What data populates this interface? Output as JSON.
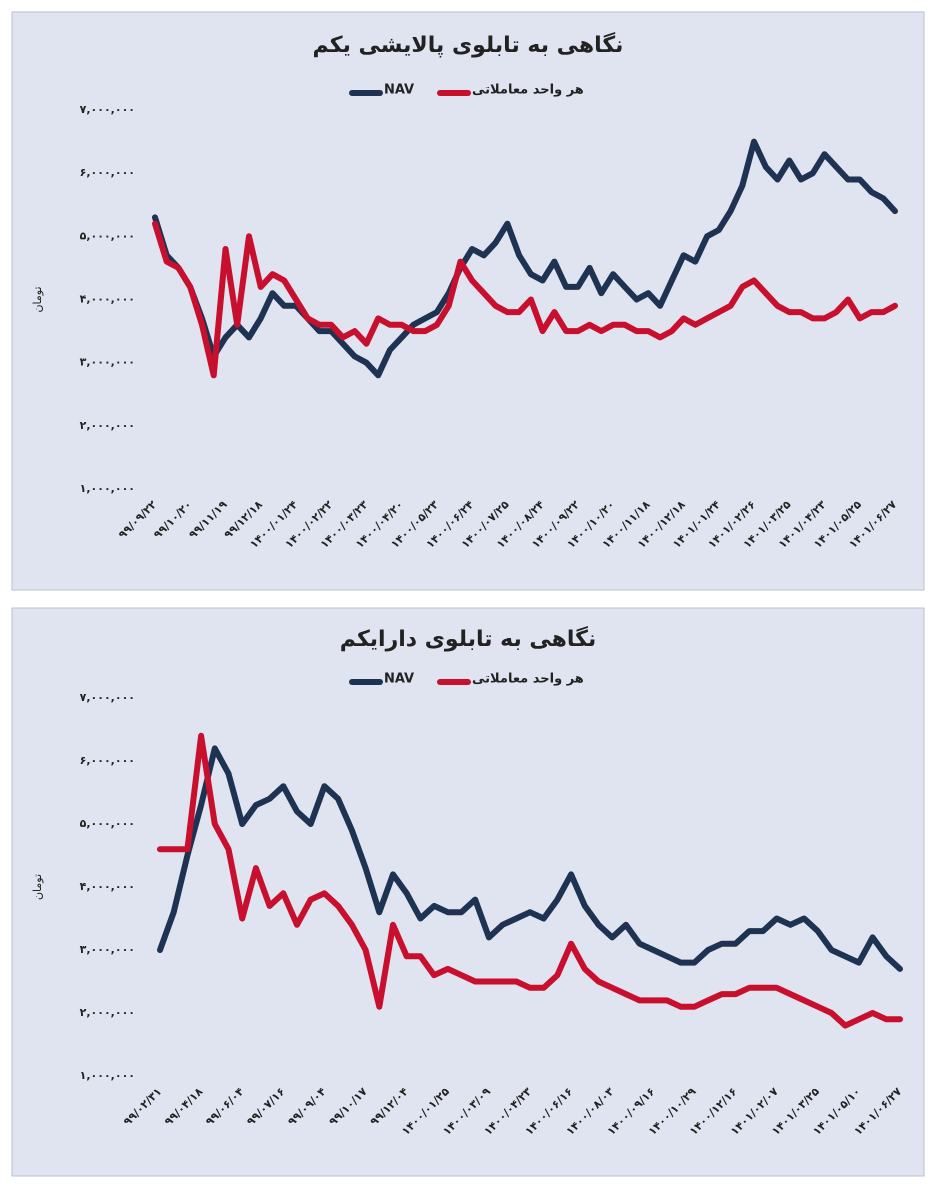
{
  "chart_data": [
    {
      "type": "line",
      "title": "نگاهی به تابلوی پالایشی یکم",
      "y_label": "تومان",
      "categories": [
        "۹۹/۰۹/۲۲",
        null,
        null,
        "۹۹/۱۰/۲۰",
        null,
        null,
        "۹۹/۱۱/۱۹",
        null,
        null,
        "۹۹/۱۲/۱۸",
        null,
        null,
        "۱۴۰۰/۰۱/۲۴",
        null,
        null,
        "۱۴۰۰/۰۲/۲۲",
        null,
        null,
        "۱۴۰۰/۰۳/۲۳",
        null,
        null,
        "۱۴۰۰/۰۴/۲۰",
        null,
        null,
        "۱۴۰۰/۰۵/۲۳",
        null,
        null,
        "۱۴۰۰/۰۶/۲۴",
        null,
        null,
        "۱۴۰۰/۰۷/۲۵",
        null,
        null,
        "۱۴۰۰/۰۸/۲۴",
        null,
        null,
        "۱۴۰۰/۰۹/۲۲",
        null,
        null,
        "۱۴۰۰/۱۰/۲۰",
        null,
        null,
        "۱۴۰۰/۱۱/۱۸",
        null,
        null,
        "۱۴۰۰/۱۲/۱۸",
        null,
        null,
        "۱۴۰۱/۰۱/۲۴",
        null,
        null,
        "۱۴۰۱/۰۲/۲۶",
        null,
        null,
        "۱۴۰۱/۰۳/۲۵",
        null,
        null,
        "۱۴۰۱/۰۴/۲۳",
        null,
        null,
        "۱۴۰۱/۰۵/۲۵",
        null,
        null,
        "۱۴۰۱/۰۶/۲۷"
      ],
      "series": [
        {
          "name": "NAV",
          "color": "#1e3251",
          "values": [
            5300000,
            4700000,
            4500000,
            4200000,
            3700000,
            3100000,
            3400000,
            3600000,
            3400000,
            3700000,
            4100000,
            3900000,
            3900000,
            3700000,
            3500000,
            3500000,
            3300000,
            3100000,
            3000000,
            2800000,
            3200000,
            3400000,
            3600000,
            3700000,
            3800000,
            4100000,
            4500000,
            4800000,
            4700000,
            4900000,
            5200000,
            4700000,
            4400000,
            4300000,
            4600000,
            4200000,
            4200000,
            4500000,
            4100000,
            4400000,
            4200000,
            4000000,
            4100000,
            3900000,
            4300000,
            4700000,
            4600000,
            5000000,
            5100000,
            5400000,
            5800000,
            6500000,
            6100000,
            5900000,
            6200000,
            5900000,
            6000000,
            6300000,
            6100000,
            5900000,
            5900000,
            5700000,
            5600000,
            5400000
          ]
        },
        {
          "name": "هر واحد معاملاتی",
          "color": "#c8102e",
          "values": [
            5200000,
            4600000,
            4500000,
            4200000,
            3600000,
            2800000,
            4800000,
            3600000,
            5000000,
            4200000,
            4400000,
            4300000,
            4000000,
            3700000,
            3600000,
            3600000,
            3400000,
            3500000,
            3300000,
            3700000,
            3600000,
            3600000,
            3500000,
            3500000,
            3600000,
            3900000,
            4600000,
            4300000,
            4100000,
            3900000,
            3800000,
            3800000,
            4000000,
            3500000,
            3800000,
            3500000,
            3500000,
            3600000,
            3500000,
            3600000,
            3600000,
            3500000,
            3500000,
            3400000,
            3500000,
            3700000,
            3600000,
            3700000,
            3800000,
            3900000,
            4200000,
            4300000,
            4100000,
            3900000,
            3800000,
            3800000,
            3700000,
            3700000,
            3800000,
            4000000,
            3700000,
            3800000,
            3800000,
            3900000
          ]
        }
      ],
      "ylim": [
        1000000,
        7000000
      ],
      "yticks": [
        {
          "value": 1000000,
          "label": "۱,۰۰۰,۰۰۰"
        },
        {
          "value": 2000000,
          "label": "۲,۰۰۰,۰۰۰"
        },
        {
          "value": 3000000,
          "label": "۳,۰۰۰,۰۰۰"
        },
        {
          "value": 4000000,
          "label": "۴,۰۰۰,۰۰۰"
        },
        {
          "value": 5000000,
          "label": "۵,۰۰۰,۰۰۰"
        },
        {
          "value": 6000000,
          "label": "۶,۰۰۰,۰۰۰"
        },
        {
          "value": 7000000,
          "label": "۷,۰۰۰,۰۰۰"
        }
      ],
      "grid": false
    },
    {
      "type": "line",
      "title": "نگاهی به تابلوی دارایکم",
      "y_label": "تومان",
      "categories": [
        "۹۹/۰۲/۳۱",
        null,
        null,
        "۹۹/۰۴/۱۸",
        null,
        null,
        "۹۹/۰۶/۰۴",
        null,
        null,
        "۹۹/۰۷/۱۶",
        null,
        null,
        "۹۹/۰۹/۰۴",
        null,
        null,
        "۹۹/۱۰/۱۷",
        null,
        null,
        "۹۹/۱۲/۰۴",
        null,
        null,
        "۱۴۰۰/۰۱/۲۵",
        null,
        null,
        "۱۴۰۰/۰۳/۰۹",
        null,
        null,
        "۱۴۰۰/۰۴/۲۳",
        null,
        null,
        "۱۴۰۰/۰۶/۱۶",
        null,
        null,
        "۱۴۰۰/۰۸/۰۳",
        null,
        null,
        "۱۴۰۰/۰۹/۱۶",
        null,
        null,
        "۱۴۰۰/۱۰/۲۹",
        null,
        null,
        "۱۴۰۰/۱۲/۱۶",
        null,
        null,
        "۱۴۰۱/۰۲/۰۷",
        null,
        null,
        "۱۴۰۱/۰۳/۲۵",
        null,
        null,
        "۱۴۰۱/۰۵/۱۰",
        null,
        null,
        "۱۴۰۱/۰۶/۲۷"
      ],
      "series": [
        {
          "name": "NAV",
          "color": "#1e3251",
          "values": [
            3000000,
            3600000,
            4500000,
            5300000,
            6200000,
            5800000,
            5000000,
            5300000,
            5400000,
            5600000,
            5200000,
            5000000,
            5600000,
            5400000,
            4900000,
            4300000,
            3600000,
            4200000,
            3900000,
            3500000,
            3700000,
            3600000,
            3600000,
            3800000,
            3200000,
            3400000,
            3500000,
            3600000,
            3500000,
            3800000,
            4200000,
            3700000,
            3400000,
            3200000,
            3400000,
            3100000,
            3000000,
            2900000,
            2800000,
            2800000,
            3000000,
            3100000,
            3100000,
            3300000,
            3300000,
            3500000,
            3400000,
            3500000,
            3300000,
            3000000,
            2900000,
            2800000,
            3200000,
            2900000,
            2700000
          ]
        },
        {
          "name": "هر واحد معاملاتی",
          "color": "#c8102e",
          "values": [
            4600000,
            4600000,
            4600000,
            6400000,
            5000000,
            4600000,
            3500000,
            4300000,
            3700000,
            3900000,
            3400000,
            3800000,
            3900000,
            3700000,
            3400000,
            3000000,
            2100000,
            3400000,
            2900000,
            2900000,
            2600000,
            2700000,
            2600000,
            2500000,
            2500000,
            2500000,
            2500000,
            2400000,
            2400000,
            2600000,
            3100000,
            2700000,
            2500000,
            2400000,
            2300000,
            2200000,
            2200000,
            2200000,
            2100000,
            2100000,
            2200000,
            2300000,
            2300000,
            2400000,
            2400000,
            2400000,
            2300000,
            2200000,
            2100000,
            2000000,
            1800000,
            1900000,
            2000000,
            1900000,
            1900000
          ]
        }
      ],
      "ylim": [
        1000000,
        7000000
      ],
      "yticks": [
        {
          "value": 1000000,
          "label": "۱,۰۰۰,۰۰۰"
        },
        {
          "value": 2000000,
          "label": "۲,۰۰۰,۰۰۰"
        },
        {
          "value": 3000000,
          "label": "۳,۰۰۰,۰۰۰"
        },
        {
          "value": 4000000,
          "label": "۴,۰۰۰,۰۰۰"
        },
        {
          "value": 5000000,
          "label": "۵,۰۰۰,۰۰۰"
        },
        {
          "value": 6000000,
          "label": "۶,۰۰۰,۰۰۰"
        },
        {
          "value": 7000000,
          "label": "۷,۰۰۰,۰۰۰"
        }
      ],
      "grid": false
    }
  ]
}
